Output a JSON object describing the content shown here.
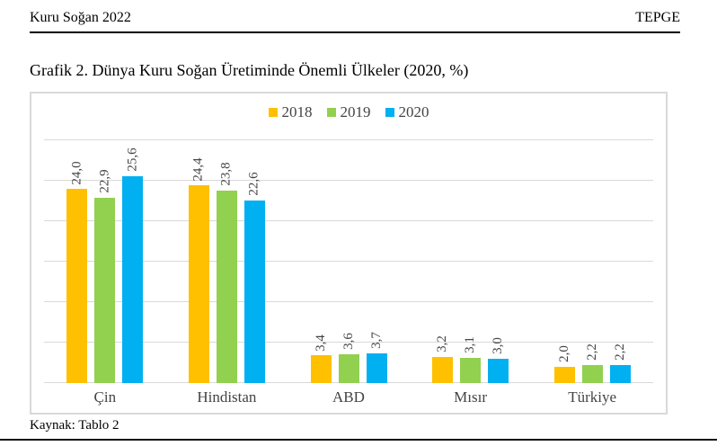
{
  "page": {
    "header": {
      "left": "Kuru Soğan 2022",
      "right": "TEPGE"
    },
    "source": "Kaynak: Tablo 2"
  },
  "chart_data": {
    "type": "bar",
    "title": "Grafik 2. Dünya Kuru Soğan Üretiminde Önemli Ülkeler (2020, %)",
    "categories": [
      "Çin",
      "Hindistan",
      "ABD",
      "Mısır",
      "Türkiye"
    ],
    "series": [
      {
        "name": "2018",
        "color": "#FFC000",
        "values": [
          24.0,
          24.4,
          3.4,
          3.2,
          2.0
        ]
      },
      {
        "name": "2019",
        "color": "#92D050",
        "values": [
          22.9,
          23.8,
          3.6,
          3.1,
          2.2
        ]
      },
      {
        "name": "2020",
        "color": "#00B0F0",
        "values": [
          25.6,
          22.6,
          3.7,
          3.0,
          2.2
        ]
      }
    ],
    "xlabel": "",
    "ylabel": "",
    "ylim": [
      0,
      30
    ],
    "grid_step": 5,
    "grid": true,
    "grid_color": "#D9D9D9",
    "text_color": "#444444",
    "legend_position": "top-center",
    "decimal_separator": ","
  }
}
